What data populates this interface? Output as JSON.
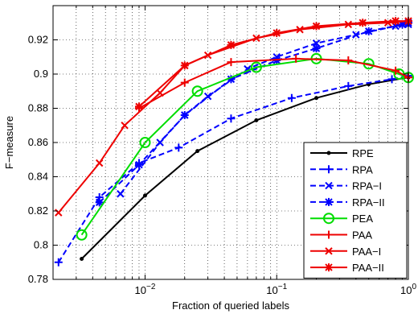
{
  "chart_data": {
    "type": "line",
    "xscale": "log",
    "xlim": [
      0.002,
      1
    ],
    "ylim": [
      0.78,
      0.94
    ],
    "xlabel": "Fraction of queried labels",
    "ylabel": "F−measure",
    "grid": true,
    "legend_position": "bottom-right",
    "x_ticks": [
      {
        "value": 0.01,
        "base": "10",
        "exp": "−2"
      },
      {
        "value": 0.1,
        "base": "10",
        "exp": "−1"
      },
      {
        "value": 1,
        "base": "10",
        "exp": "0"
      }
    ],
    "y_ticks": [
      0.78,
      0.8,
      0.82,
      0.84,
      0.86,
      0.88,
      0.9,
      0.92
    ],
    "y_tick_labels": [
      "0.78",
      "0.8",
      "0.82",
      "0.84",
      "0.86",
      "0.88",
      "0.9",
      "0.92"
    ],
    "series": [
      {
        "name": "RPE",
        "color": "#000000",
        "dash": "solid",
        "marker": "dot",
        "x": [
          0.0033,
          0.01,
          0.025,
          0.07,
          0.2,
          0.5,
          1.0
        ],
        "y": [
          0.792,
          0.829,
          0.855,
          0.873,
          0.886,
          0.894,
          0.898
        ]
      },
      {
        "name": "RPA",
        "color": "#0000ff",
        "dash": "dashed",
        "marker": "plus",
        "x": [
          0.0022,
          0.0045,
          0.009,
          0.018,
          0.045,
          0.13,
          0.35,
          0.75,
          1.0
        ],
        "y": [
          0.79,
          0.828,
          0.848,
          0.857,
          0.874,
          0.886,
          0.893,
          0.897,
          0.899
        ]
      },
      {
        "name": "RPA−I",
        "color": "#0000ff",
        "dash": "dashed",
        "marker": "x",
        "x": [
          0.0065,
          0.013,
          0.02,
          0.03,
          0.06,
          0.1,
          0.2,
          0.4,
          0.8,
          1.0
        ],
        "y": [
          0.83,
          0.86,
          0.876,
          0.887,
          0.903,
          0.91,
          0.918,
          0.923,
          0.928,
          0.929
        ]
      },
      {
        "name": "RPA−II",
        "color": "#0000ff",
        "dash": "dashed",
        "marker": "star",
        "x": [
          0.0045,
          0.009,
          0.02,
          0.045,
          0.1,
          0.2,
          0.5,
          0.9,
          1.0
        ],
        "y": [
          0.825,
          0.847,
          0.876,
          0.897,
          0.908,
          0.915,
          0.925,
          0.929,
          0.93
        ]
      },
      {
        "name": "PEA",
        "color": "#00dd00",
        "dash": "solid",
        "marker": "circle",
        "x": [
          0.0033,
          0.01,
          0.025,
          0.07,
          0.2,
          0.5,
          0.85,
          1.0
        ],
        "y": [
          0.806,
          0.86,
          0.89,
          0.904,
          0.909,
          0.906,
          0.9,
          0.898
        ]
      },
      {
        "name": "PAA",
        "color": "#ee0000",
        "dash": "solid",
        "marker": "plus",
        "x": [
          0.009,
          0.02,
          0.045,
          0.14,
          0.35,
          0.8,
          1.0
        ],
        "y": [
          0.88,
          0.895,
          0.907,
          0.909,
          0.908,
          0.902,
          0.898
        ]
      },
      {
        "name": "PAA−I",
        "color": "#ee0000",
        "dash": "solid",
        "marker": "x",
        "x": [
          0.0022,
          0.0045,
          0.007,
          0.013,
          0.02,
          0.03,
          0.07,
          0.15,
          0.35,
          0.7,
          1.0
        ],
        "y": [
          0.819,
          0.848,
          0.87,
          0.889,
          0.905,
          0.911,
          0.921,
          0.926,
          0.929,
          0.93,
          0.931
        ]
      },
      {
        "name": "PAA−II",
        "color": "#ee0000",
        "dash": "solid",
        "marker": "star",
        "x": [
          0.009,
          0.02,
          0.045,
          0.1,
          0.2,
          0.45,
          0.8,
          1.0
        ],
        "y": [
          0.881,
          0.905,
          0.917,
          0.924,
          0.928,
          0.93,
          0.931,
          0.931
        ]
      }
    ]
  }
}
